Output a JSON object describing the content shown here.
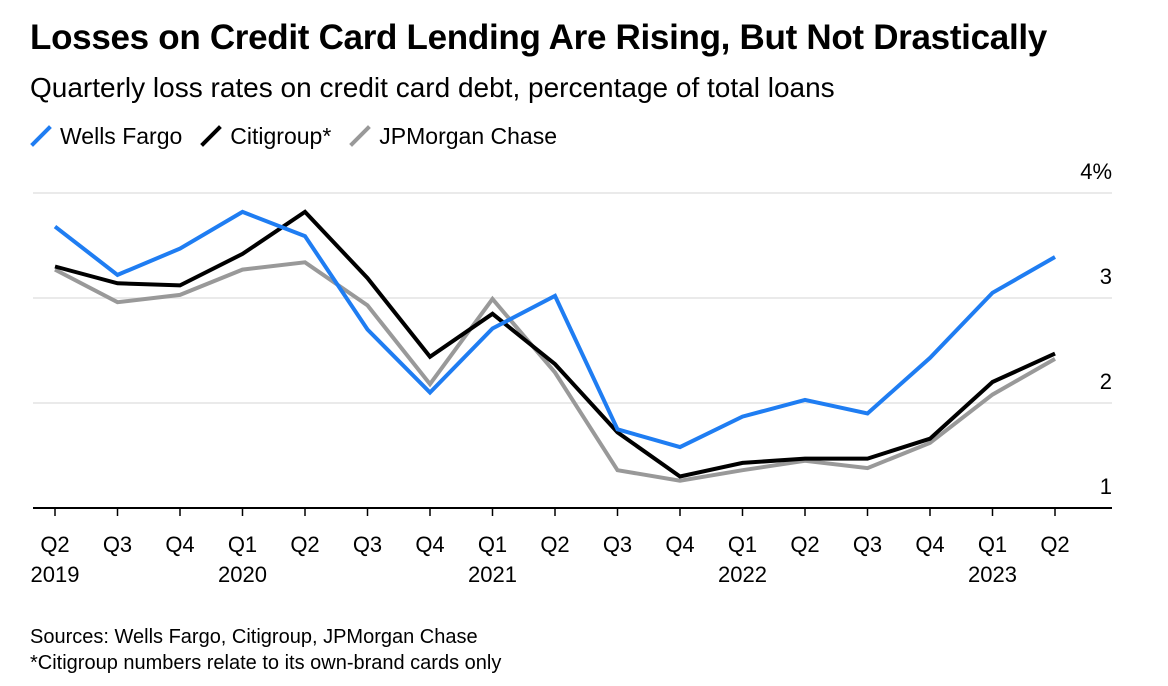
{
  "chart_data": {
    "type": "line",
    "title": "Losses on Credit Card Lending Are Rising, But Not Drastically",
    "subtitle": "Quarterly loss rates on credit card debt, percentage of total loans",
    "categories": [
      "Q2 2019",
      "Q3 2019",
      "Q4 2019",
      "Q1 2020",
      "Q2 2020",
      "Q3 2020",
      "Q4 2020",
      "Q1 2021",
      "Q2 2021",
      "Q3 2021",
      "Q4 2021",
      "Q1 2022",
      "Q2 2022",
      "Q3 2022",
      "Q4 2022",
      "Q1 2023",
      "Q2 2023"
    ],
    "x_tick_labels": [
      "Q2",
      "Q3",
      "Q4",
      "Q1",
      "Q2",
      "Q3",
      "Q4",
      "Q1",
      "Q2",
      "Q3",
      "Q4",
      "Q1",
      "Q2",
      "Q3",
      "Q4",
      "Q1",
      "Q2"
    ],
    "year_labels": [
      {
        "label": "2019",
        "index": 0
      },
      {
        "label": "2020",
        "index": 3
      },
      {
        "label": "2021",
        "index": 7
      },
      {
        "label": "2022",
        "index": 11
      },
      {
        "label": "2023",
        "index": 15
      }
    ],
    "y_ticks": [
      "4%",
      "3",
      "2",
      "1"
    ],
    "y_tick_values": [
      4,
      3,
      2,
      1
    ],
    "ylim": [
      1,
      4
    ],
    "grid": true,
    "legend_position": "top-left",
    "series": [
      {
        "name": "Wells Fargo",
        "color": "#1f7df2",
        "values": [
          3.68,
          3.22,
          3.47,
          3.82,
          3.59,
          2.7,
          2.1,
          2.71,
          3.02,
          1.75,
          1.58,
          1.87,
          2.03,
          1.9,
          2.43,
          3.05,
          3.39
        ]
      },
      {
        "name": "Citigroup*",
        "color": "#000000",
        "values": [
          3.3,
          3.14,
          3.12,
          3.42,
          3.82,
          3.19,
          2.44,
          2.85,
          2.37,
          1.72,
          1.3,
          1.43,
          1.47,
          1.47,
          1.66,
          2.2,
          2.47
        ]
      },
      {
        "name": "JPMorgan Chase",
        "color": "#999999",
        "values": [
          3.27,
          2.96,
          3.03,
          3.27,
          3.34,
          2.93,
          2.18,
          2.99,
          2.29,
          1.36,
          1.26,
          1.36,
          1.45,
          1.38,
          1.62,
          2.08,
          2.42
        ]
      }
    ],
    "sources": "Sources: Wells Fargo, Citigroup, JPMorgan Chase",
    "footnote": "*Citigroup numbers relate to its own-brand cards only"
  }
}
